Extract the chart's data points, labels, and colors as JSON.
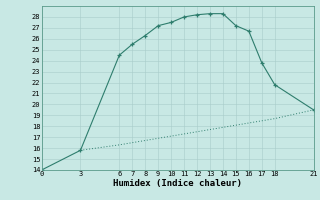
{
  "xlabel": "Humidex (Indice chaleur)",
  "line1_x": [
    0,
    3,
    6,
    7,
    8,
    9,
    10,
    11,
    12,
    13,
    14,
    15,
    16,
    17,
    18,
    21
  ],
  "line1_y": [
    14,
    15.8,
    24.5,
    25.5,
    26.3,
    27.2,
    27.5,
    28.0,
    28.2,
    28.3,
    28.3,
    27.2,
    26.7,
    23.8,
    21.8,
    19.5
  ],
  "line2_x": [
    3,
    6,
    7,
    8,
    9,
    10,
    11,
    12,
    13,
    14,
    15,
    16,
    17,
    18,
    21
  ],
  "line2_y": [
    15.8,
    16.3,
    16.5,
    16.7,
    16.9,
    17.1,
    17.3,
    17.5,
    17.7,
    17.9,
    18.1,
    18.3,
    18.5,
    18.7,
    19.5
  ],
  "color": "#2e7d6d",
  "bg_color": "#c8e8e4",
  "grid_color": "#a8ccca",
  "ylim": [
    14,
    29
  ],
  "xlim": [
    0,
    21
  ],
  "yticks": [
    14,
    15,
    16,
    17,
    18,
    19,
    20,
    21,
    22,
    23,
    24,
    25,
    26,
    27,
    28
  ],
  "xticks": [
    0,
    3,
    6,
    7,
    8,
    9,
    10,
    11,
    12,
    13,
    14,
    15,
    16,
    17,
    18,
    21
  ],
  "tick_fontsize": 5.0,
  "xlabel_fontsize": 6.5
}
